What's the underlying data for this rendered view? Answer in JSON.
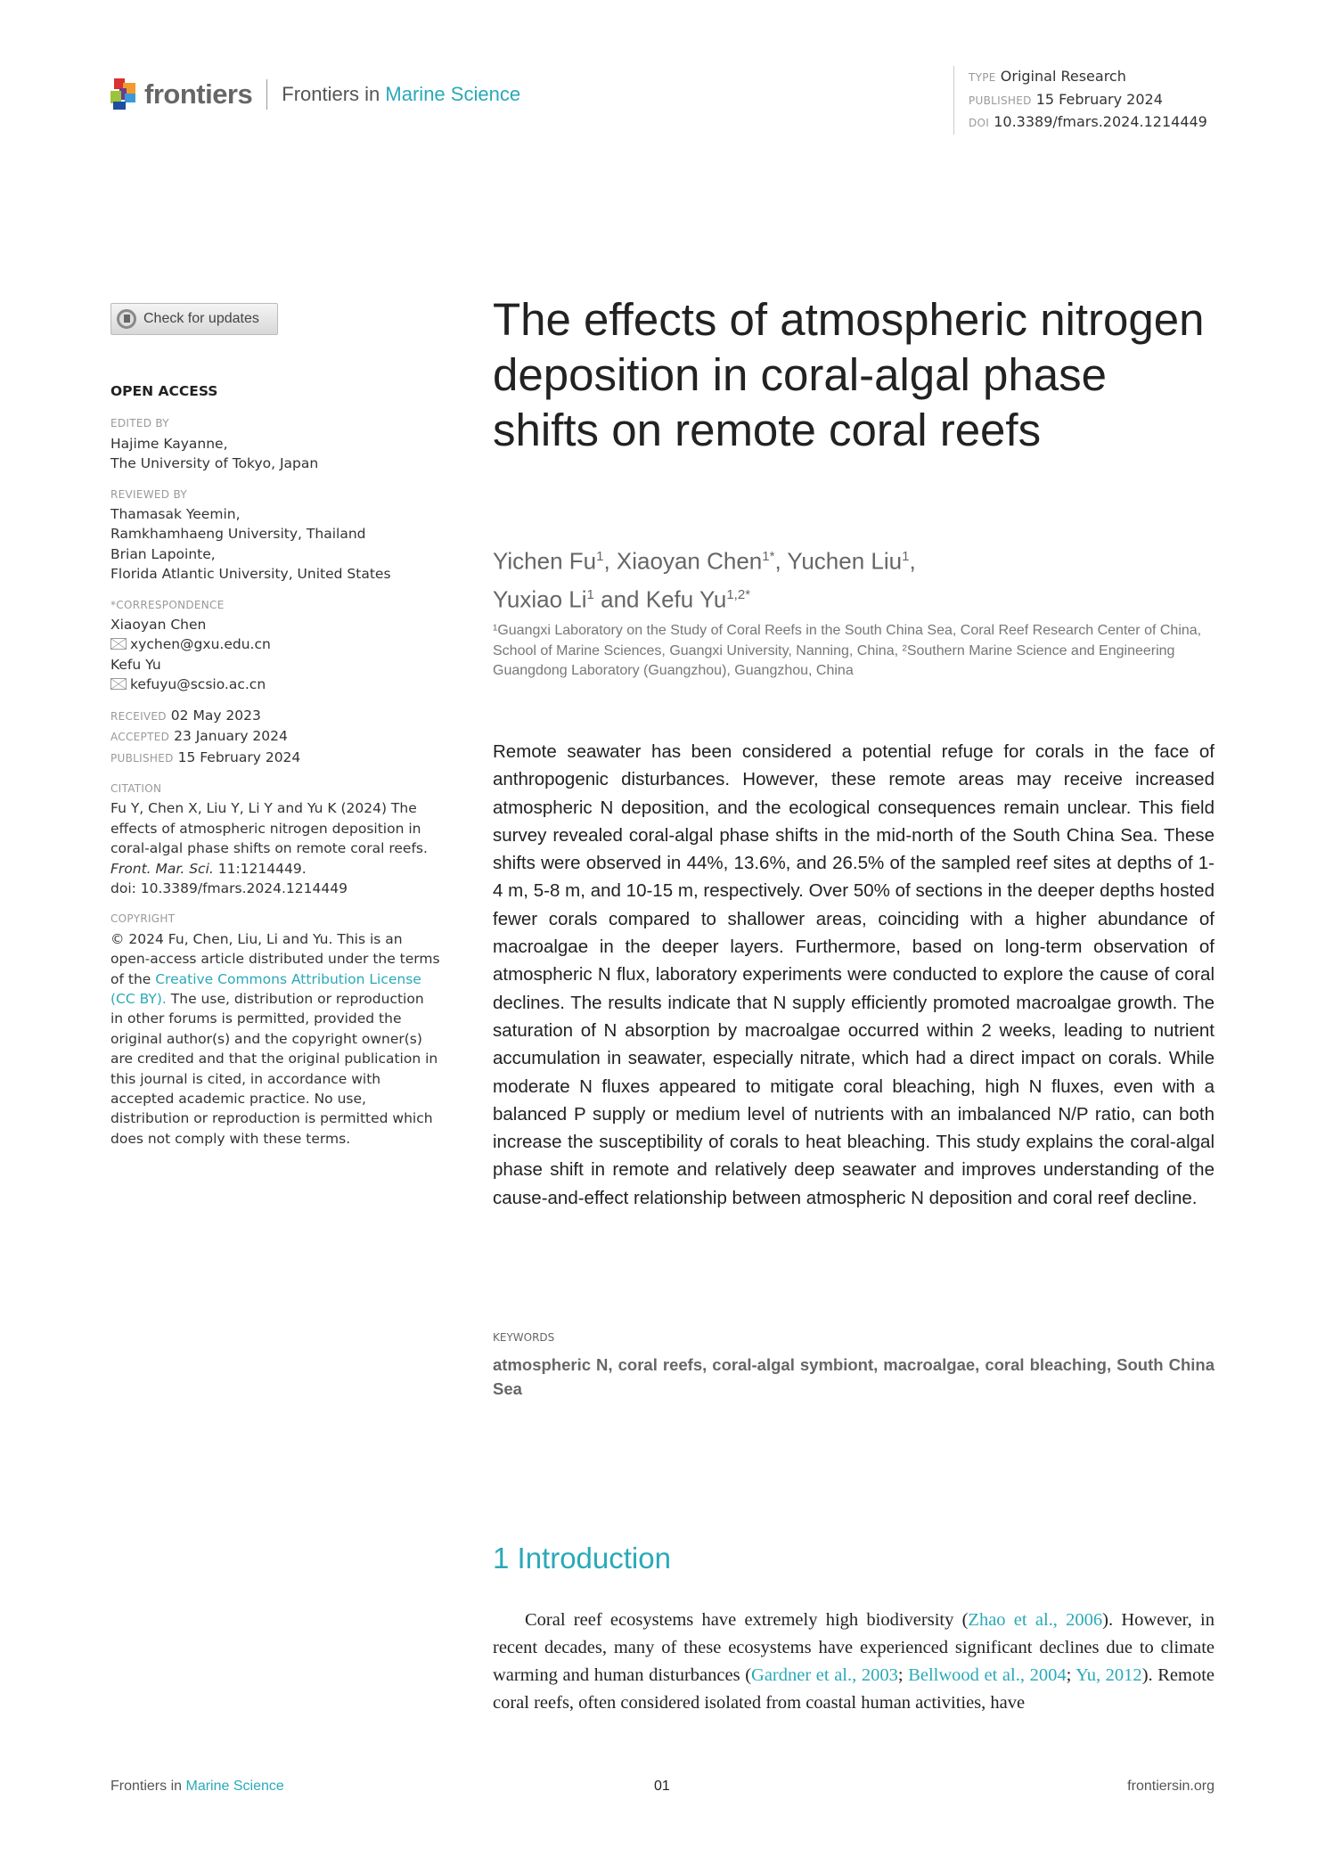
{
  "header": {
    "brand": "frontiers",
    "journal_prefix": "Frontiers in",
    "journal_name": "Marine Science",
    "type_label": "TYPE",
    "type": "Original Research",
    "published_label": "PUBLISHED",
    "published": "15 February 2024",
    "doi_label": "DOI",
    "doi": "10.3389/fmars.2024.1214449"
  },
  "check_updates": "Check for updates",
  "sidebar": {
    "open_access": "OPEN ACCESS",
    "edited_by_label": "EDITED BY",
    "editor": [
      "Hajime Kayanne,",
      "The University of Tokyo, Japan"
    ],
    "reviewed_by_label": "REVIEWED BY",
    "reviewers": [
      "Thamasak Yeemin,",
      "Ramkhamhaeng University, Thailand",
      "Brian Lapointe,",
      "Florida Atlantic University, United States"
    ],
    "correspondence_label": "*CORRESPONDENCE",
    "corr1_name": "Xiaoyan Chen",
    "corr1_email": "xychen@gxu.edu.cn",
    "corr2_name": "Kefu Yu",
    "corr2_email": "kefuyu@scsio.ac.cn",
    "received_label": "RECEIVED",
    "received": "02 May 2023",
    "accepted_label": "ACCEPTED",
    "accepted": "23 January 2024",
    "published_label": "PUBLISHED",
    "published": "15 February 2024",
    "citation_label": "CITATION",
    "citation_text": "Fu Y, Chen X, Liu Y, Li Y and Yu K (2024) The effects of atmospheric nitrogen deposition in coral-algal phase shifts on remote coral reefs.",
    "citation_journal": "Front. Mar. Sci.",
    "citation_volume": " 11:1214449.",
    "citation_doi": "doi: 10.3389/fmars.2024.1214449",
    "copyright_label": "COPYRIGHT",
    "copyright_pre": "© 2024 Fu, Chen, Liu, Li and Yu. This is an open-access article distributed under the terms of the ",
    "copyright_link": "Creative Commons Attribution License (CC BY).",
    "copyright_post": " The use, distribution or reproduction in other forums is permitted, provided the original author(s) and the copyright owner(s) are credited and that the original publication in this journal is cited, in accordance with accepted academic practice. No use, distribution or reproduction is permitted which does not comply with these terms."
  },
  "article": {
    "title": "The effects of atmospheric nitrogen deposition in coral-algal phase shifts on remote coral reefs",
    "authors": [
      {
        "name": "Yichen Fu",
        "sup": "1"
      },
      {
        "name": "Xiaoyan Chen",
        "sup": "1*"
      },
      {
        "name": "Yuchen Liu",
        "sup": "1"
      },
      {
        "name": "Yuxiao Li",
        "sup": "1"
      },
      {
        "name": "Kefu Yu",
        "sup": "1,2*"
      }
    ],
    "and": "and",
    "affiliations": "¹Guangxi Laboratory on the Study of Coral Reefs in the South China Sea, Coral Reef Research Center of China, School of Marine Sciences, Guangxi University, Nanning, China, ²Southern Marine Science and Engineering Guangdong Laboratory (Guangzhou), Guangzhou, China",
    "abstract": "Remote seawater has been considered a potential refuge for corals in the face of anthropogenic disturbances. However, these remote areas may receive increased atmospheric N deposition, and the ecological consequences remain unclear. This field survey revealed coral-algal phase shifts in the mid-north of the South China Sea. These shifts were observed in 44%, 13.6%, and 26.5% of the sampled reef sites at depths of 1-4 m, 5-8 m, and 10-15 m, respectively. Over 50% of sections in the deeper depths hosted fewer corals compared to shallower areas, coinciding with a higher abundance of macroalgae in the deeper layers. Furthermore, based on long-term observation of atmospheric N flux, laboratory experiments were conducted to explore the cause of coral declines. The results indicate that N supply efficiently promoted macroalgae growth. The saturation of N absorption by macroalgae occurred within 2 weeks, leading to nutrient accumulation in seawater, especially nitrate, which had a direct impact on corals. While moderate N fluxes appeared to mitigate coral bleaching, high N fluxes, even with a balanced P supply or medium level of nutrients with an imbalanced N/P ratio, can both increase the susceptibility of corals to heat bleaching. This study explains the coral-algal phase shift in remote and relatively deep seawater and improves understanding of the cause-and-effect relationship between atmospheric N deposition and coral reef decline.",
    "keywords_label": "KEYWORDS",
    "keywords": "atmospheric N, coral reefs, coral-algal symbiont, macroalgae, coral bleaching, South China Sea",
    "section_heading": "1 Introduction",
    "intro": {
      "t1": "Coral reef ecosystems have extremely high biodiversity (",
      "r1": "Zhao et al., 2006",
      "t2": "). However, in recent decades, many of these ecosystems have experienced significant declines due to climate warming and human disturbances (",
      "r2": "Gardner et al., 2003",
      "t3": "; ",
      "r3": "Bellwood et al., 2004",
      "t4": "; ",
      "r4": "Yu, 2012",
      "t5": "). Remote coral reefs, often considered isolated from coastal human activities, have"
    }
  },
  "footer": {
    "journal_prefix": "Frontiers in",
    "journal_name": "Marine Science",
    "page": "01",
    "site": "frontiersin.org"
  },
  "colors": {
    "accent": "#2aa9b8",
    "text": "#222222",
    "muted": "#999999"
  }
}
